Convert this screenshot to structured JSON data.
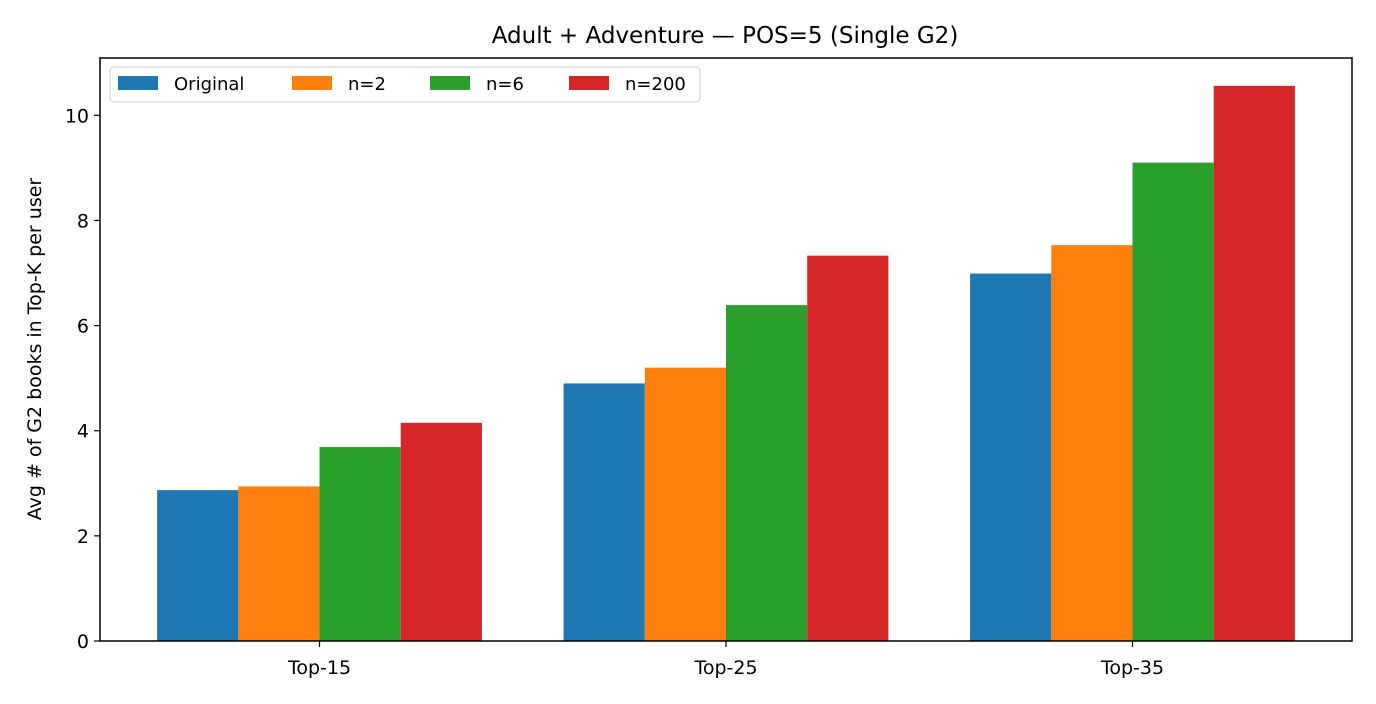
{
  "chart_data": {
    "type": "bar",
    "title": "Adult + Adventure — POS=5 (Single G2)",
    "xlabel": "",
    "ylabel": "Avg # of G2 books in Top-K per user",
    "categories": [
      "Top-15",
      "Top-25",
      "Top-35"
    ],
    "series": [
      {
        "name": "Original",
        "color": "#1f77b4",
        "values": [
          2.87,
          4.9,
          6.99
        ]
      },
      {
        "name": "n=2",
        "color": "#ff7f0e",
        "values": [
          2.94,
          5.2,
          7.53
        ]
      },
      {
        "name": "n=6",
        "color": "#2ca02c",
        "values": [
          3.69,
          6.39,
          9.1
        ]
      },
      {
        "name": "n=200",
        "color": "#d62728",
        "values": [
          4.15,
          7.33,
          10.56
        ]
      }
    ],
    "ylim": [
      0,
      11.09
    ],
    "yticks": [
      "0",
      "2",
      "4",
      "6",
      "8",
      "10"
    ],
    "grid": false,
    "legend_placement": "top-left"
  }
}
